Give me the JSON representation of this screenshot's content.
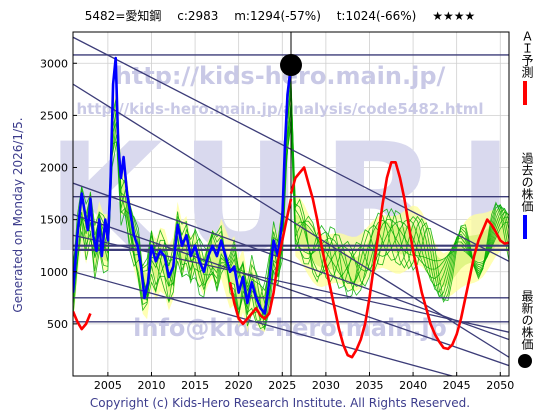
{
  "header": {
    "code_name": "5482=愛知鋼",
    "current": "c:2983",
    "min": "m:1294(-57%)",
    "target": "t:1024(-66%)",
    "stars": "★★★★"
  },
  "side_note": "Generated on Monday 2026/1/5.",
  "footer": "Copyright (c) Kids-Hero Research Institute. All Rights Reserved.",
  "watermarks": {
    "url_main": "http://kids-hero.main.jp/",
    "url_analysis": "http://kids-hero.main.jp/analysis/code5482.html",
    "big": "KURI",
    "email": "info@kids-hero.main.jp"
  },
  "legend": [
    {
      "label": "ＡＩ予測",
      "color": "#ff0000",
      "marker": "line"
    },
    {
      "label": "過去の株価",
      "color": "#0000ff",
      "marker": "line"
    },
    {
      "label": "最新の株価",
      "color": "#000000",
      "marker": "dot"
    }
  ],
  "colors": {
    "past": "#0000ff",
    "ai": "#ff0000",
    "similar": "#00aa00",
    "band": "#ccee66",
    "band_light": "#ffff99",
    "trend": "#3c3c78"
  },
  "chart_data": {
    "type": "line",
    "title": "5482=愛知鋼",
    "xlabel": "",
    "ylabel": "",
    "xlim": [
      2001,
      2051
    ],
    "ylim": [
      0,
      3300
    ],
    "x_ticks": [
      2005,
      2010,
      2015,
      2020,
      2025,
      2030,
      2035,
      2040,
      2045,
      2050
    ],
    "y_ticks": [
      500,
      1000,
      1500,
      2000,
      2500,
      3000
    ],
    "grid": true,
    "latest": {
      "x": 2026.0,
      "y": 2983
    },
    "series": [
      {
        "role": "past",
        "x": [
          2001.0,
          2001.5,
          2002.0,
          2002.3,
          2002.7,
          2003.0,
          2003.3,
          2003.7,
          2004.0,
          2004.3,
          2004.7,
          2005.0,
          2005.3,
          2005.6,
          2005.9,
          2006.2,
          2006.5,
          2006.8,
          2007.2,
          2007.6,
          2008.0,
          2008.4,
          2008.8,
          2009.2,
          2009.6,
          2010.0,
          2010.5,
          2011.0,
          2011.5,
          2012.0,
          2012.5,
          2013.0,
          2013.5,
          2014.0,
          2014.5,
          2015.0,
          2015.5,
          2016.0,
          2016.5,
          2017.0,
          2017.5,
          2018.0,
          2018.5,
          2019.0,
          2019.5,
          2020.0,
          2020.5,
          2021.0,
          2021.5,
          2022.0,
          2022.5,
          2023.0,
          2023.5,
          2024.0,
          2024.5,
          2025.0,
          2025.3,
          2025.6,
          2026.0
        ],
        "y": [
          800,
          1350,
          1750,
          1600,
          1400,
          1700,
          1350,
          1200,
          1500,
          1150,
          1500,
          1300,
          1850,
          2800,
          3050,
          2200,
          1900,
          2100,
          1750,
          1550,
          1350,
          1250,
          1050,
          750,
          900,
          1250,
          1100,
          1200,
          1150,
          950,
          1050,
          1450,
          1250,
          1350,
          1150,
          1250,
          1100,
          1000,
          1150,
          1250,
          1150,
          1300,
          1150,
          1000,
          1050,
          800,
          950,
          700,
          900,
          750,
          650,
          600,
          900,
          1300,
          1150,
          1500,
          2200,
          2700,
          2983
        ]
      },
      {
        "role": "ai",
        "x": [
          2026.0,
          2026.5,
          2027.0,
          2027.5,
          2028.0,
          2028.5,
          2029.0,
          2029.5,
          2030.0,
          2030.5,
          2031.0,
          2031.5,
          2032.0,
          2032.5,
          2033.0,
          2033.5,
          2034.0,
          2034.5,
          2035.0,
          2035.5,
          2036.0,
          2036.5,
          2037.0,
          2037.5,
          2038.0,
          2038.5,
          2039.0,
          2039.5,
          2040.0,
          2040.5,
          2041.0,
          2041.5,
          2042.0,
          2042.5,
          2043.0,
          2043.5,
          2044.0,
          2044.5,
          2045.0,
          2045.5,
          2046.0,
          2046.5,
          2047.0,
          2047.5,
          2048.0,
          2048.5,
          2049.0,
          2049.5,
          2050.0,
          2050.5,
          2051.0
        ],
        "y": [
          1750,
          1900,
          1950,
          2000,
          1850,
          1700,
          1500,
          1250,
          1050,
          850,
          650,
          450,
          300,
          200,
          180,
          250,
          350,
          500,
          750,
          1050,
          1350,
          1650,
          1900,
          2050,
          2050,
          1900,
          1700,
          1450,
          1200,
          1000,
          800,
          650,
          500,
          400,
          330,
          270,
          260,
          300,
          400,
          550,
          750,
          950,
          1150,
          1300,
          1400,
          1500,
          1450,
          1380,
          1300,
          1270,
          1280
        ]
      },
      {
        "role": "ai-pre",
        "x": [
          2001.0,
          2001.5,
          2002.0,
          2002.5,
          2003.0
        ],
        "y": [
          620,
          520,
          450,
          500,
          600
        ]
      },
      {
        "role": "ai-mid",
        "x": [
          2019.0,
          2019.5,
          2020.0,
          2020.5,
          2021.0,
          2021.5,
          2022.0,
          2022.5,
          2023.0,
          2023.5,
          2024.0,
          2024.5,
          2025.0,
          2025.5,
          2026.0
        ],
        "y": [
          900,
          700,
          550,
          500,
          550,
          600,
          650,
          580,
          550,
          600,
          800,
          1100,
          1300,
          1500,
          1700
        ]
      }
    ],
    "trend_lines": [
      {
        "x": [
          2001,
          2051
        ],
        "y": [
          3250,
          1100
        ]
      },
      {
        "x": [
          2001,
          2051
        ],
        "y": [
          2800,
          180
        ]
      },
      {
        "x": [
          2001,
          2051
        ],
        "y": [
          1850,
          350
        ]
      },
      {
        "x": [
          2001,
          2051
        ],
        "y": [
          1550,
          100
        ]
      },
      {
        "x": [
          2001,
          2051
        ],
        "y": [
          1350,
          420
        ]
      },
      {
        "x": [
          2001,
          2051
        ],
        "y": [
          1000,
          -150
        ]
      }
    ],
    "horizontal_lines": [
      3080,
      1720,
      1250,
      1210,
      750,
      520
    ]
  }
}
